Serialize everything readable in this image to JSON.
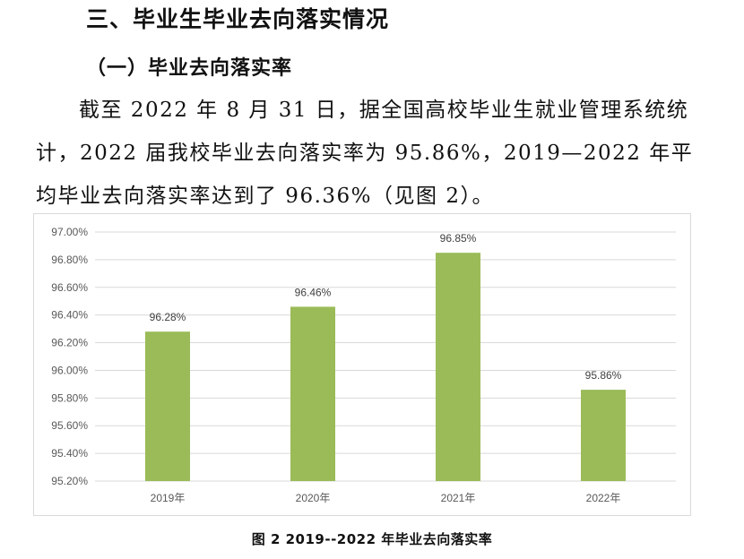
{
  "section_title": "三、毕业生毕业去向落实情况",
  "sub_title": "（一）毕业去向落实率",
  "paragraph": "截至 2022 年 8 月 31 日，据全国高校毕业生就业管理系统统计，2022 届我校毕业去向落实率为 95.86%，2019—2022 年平均毕业去向落实率达到了 96.36%（见图 2）。",
  "caption": "图 2   2019--2022 年毕业去向落实率",
  "colors": {
    "bar": "#9bbb59",
    "grid": "#d9d9d9",
    "axis_text": "#595959"
  },
  "chart_data": {
    "type": "bar",
    "categories": [
      "2019年",
      "2020年",
      "2021年",
      "2022年"
    ],
    "values": [
      96.28,
      96.46,
      96.85,
      95.86
    ],
    "data_labels": [
      "96.28%",
      "96.46%",
      "96.85%",
      "95.86%"
    ],
    "yticks": [
      "95.20%",
      "95.40%",
      "95.60%",
      "95.80%",
      "96.00%",
      "96.20%",
      "96.40%",
      "96.60%",
      "96.80%",
      "97.00%"
    ],
    "ylim": [
      95.2,
      97.0
    ],
    "grid": true,
    "title": "",
    "xlabel": "",
    "ylabel": ""
  }
}
